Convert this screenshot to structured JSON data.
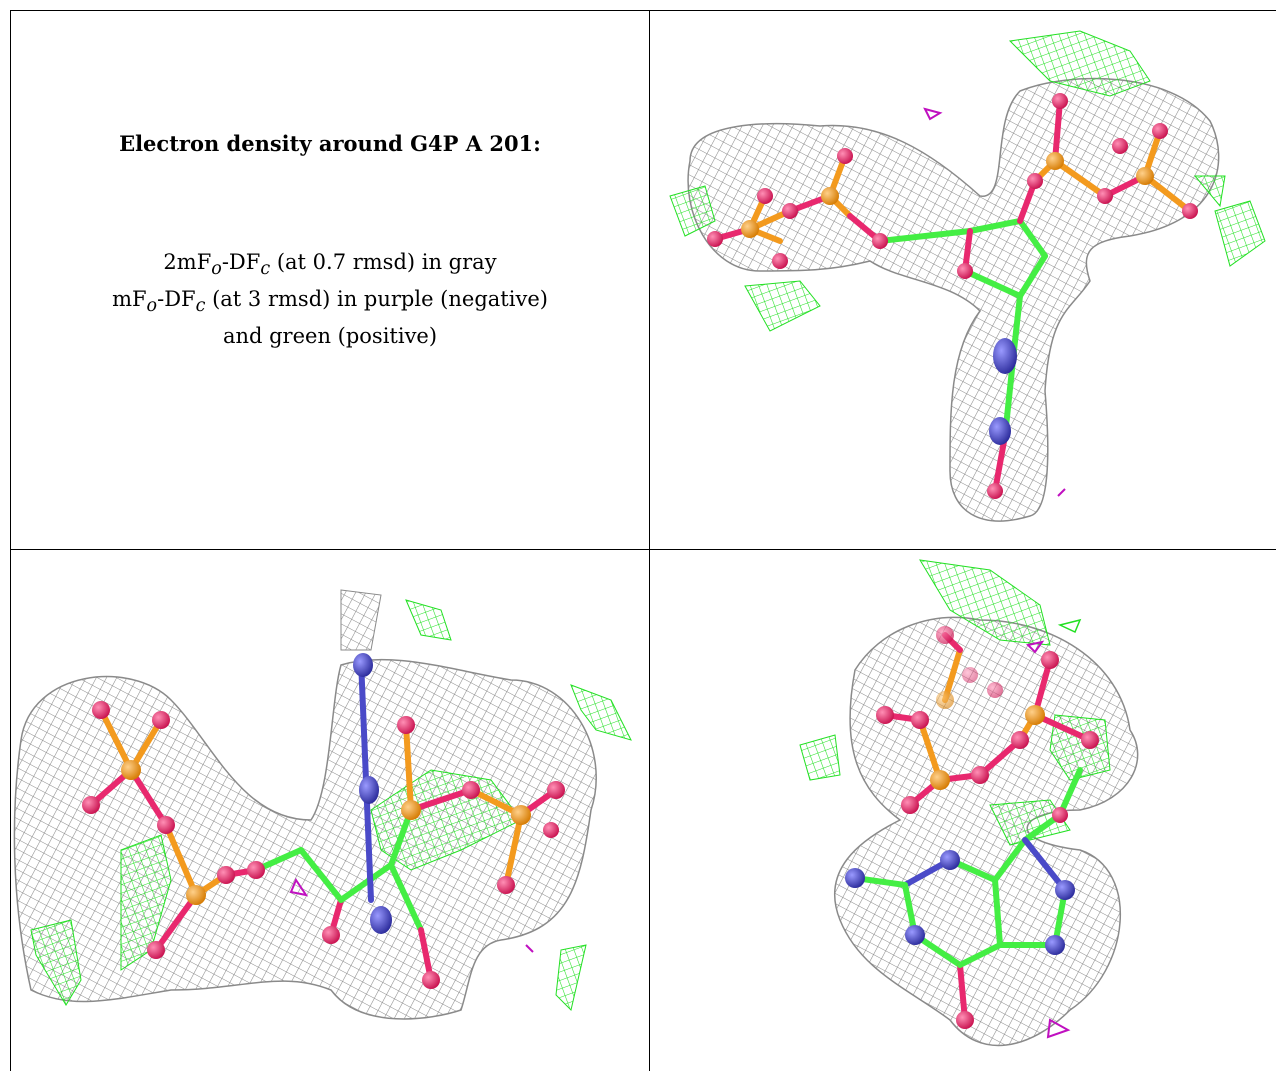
{
  "legend": {
    "title": "Electron density around G4P A 201:",
    "line1": {
      "a": "2mF",
      "a_sub": "o",
      "b": "-DF",
      "b_sub": "c",
      "rest": " (at 0.7 rmsd) in gray"
    },
    "line2": {
      "a": "mF",
      "a_sub": "o",
      "b": "-DF",
      "b_sub": "c",
      "rest": " (at 3 rmsd) in purple (negative)"
    },
    "line3": "and green (positive)"
  },
  "colors": {
    "mesh_gray": "#8a8a8a",
    "mesh_green": "#22e022",
    "mesh_purple": "#c010c0",
    "carbon_green": "#44ee44",
    "oxygen": "#e8286e",
    "phosphorus": "#f39a1e",
    "nitrogen": "#4a4ac8"
  },
  "icons": [
    "ball-and-stick-molecule",
    "density-mesh"
  ]
}
